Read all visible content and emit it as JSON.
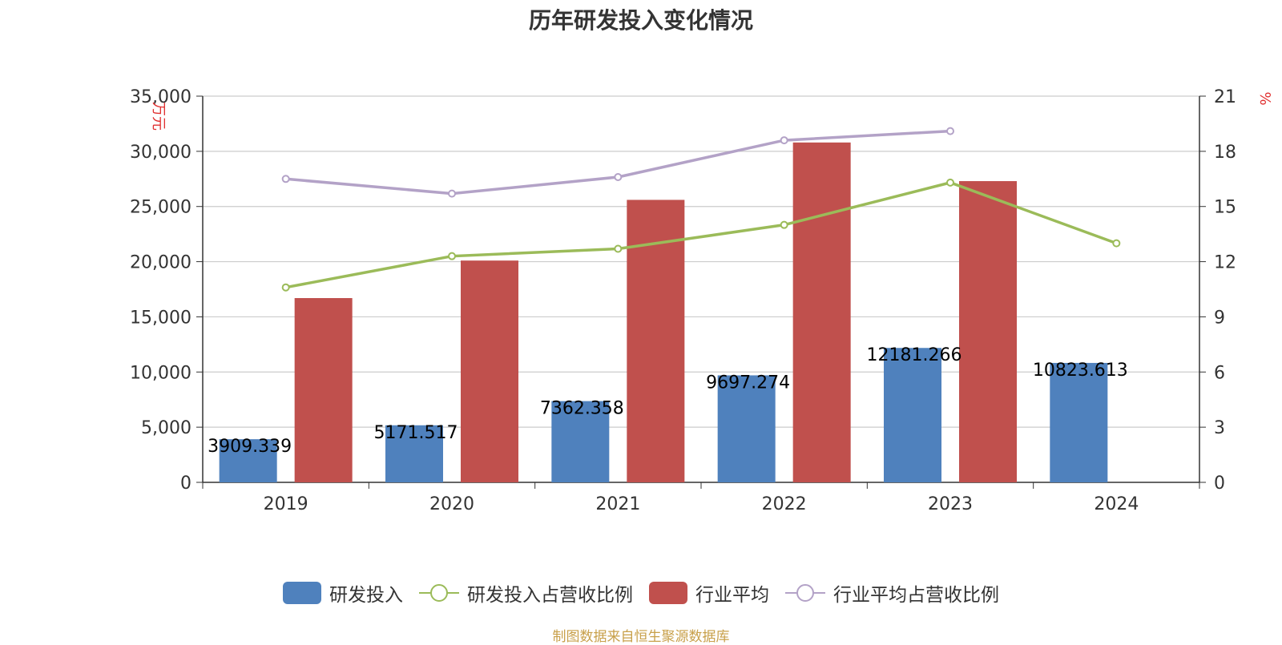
{
  "chart_data": {
    "type": "bar",
    "title": "历年研发投入变化情况",
    "categories": [
      "2019",
      "2020",
      "2021",
      "2022",
      "2023",
      "2024"
    ],
    "left_axis": {
      "label": "万元",
      "min": 0,
      "max": 35000,
      "ticks": [
        "0",
        "5,000",
        "10,000",
        "15,000",
        "20,000",
        "25,000",
        "30,000",
        "35,000"
      ]
    },
    "right_axis": {
      "label": "%",
      "min": 0,
      "max": 21,
      "ticks": [
        "0",
        "3",
        "6",
        "9",
        "12",
        "15",
        "18",
        "21"
      ]
    },
    "series": [
      {
        "name": "研发投入",
        "type": "bar",
        "axis": "left",
        "color": "#4f81bd",
        "values": [
          3909.339,
          5171.517,
          7362.358,
          9697.274,
          12181.266,
          10823.613
        ],
        "labels": [
          "3909.339",
          "5171.517",
          "7362.358",
          "9697.274",
          "12181.266",
          "10823.613"
        ]
      },
      {
        "name": "研发投入占营收比例",
        "type": "line",
        "axis": "right",
        "color": "#9bbb59",
        "values": [
          10.6,
          12.3,
          12.7,
          14.0,
          16.3,
          13.0
        ]
      },
      {
        "name": "行业平均",
        "type": "bar",
        "axis": "left",
        "color": "#c0504d",
        "values": [
          16700,
          20100,
          25600,
          30800,
          27300,
          null
        ]
      },
      {
        "name": "行业平均占营收比例",
        "type": "line",
        "axis": "right",
        "color": "#b3a2c7",
        "values": [
          16.5,
          15.7,
          16.6,
          18.6,
          19.1,
          null
        ]
      }
    ],
    "legend_position": "bottom",
    "grid": true
  },
  "source_note": "制图数据来自恒生聚源数据库"
}
